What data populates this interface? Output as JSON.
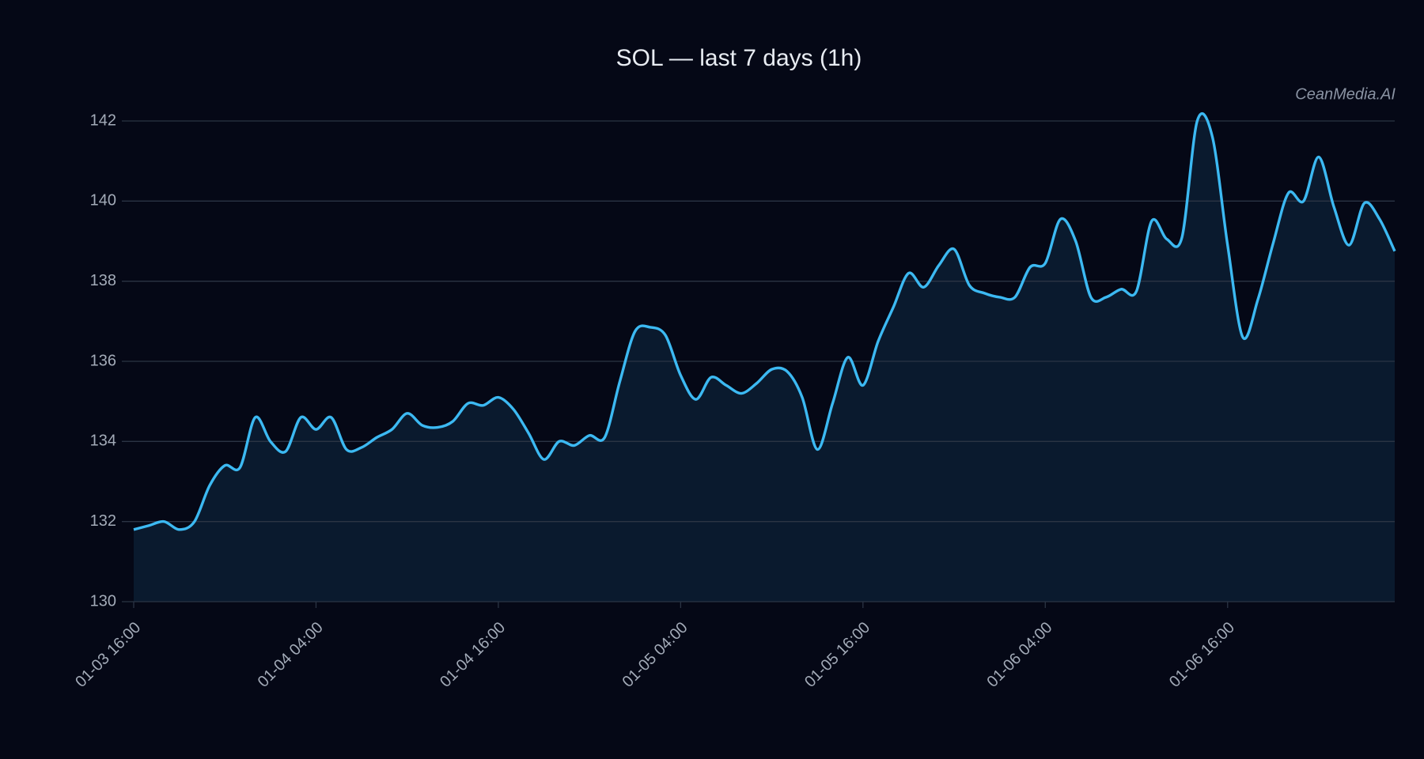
{
  "chart_data": {
    "type": "line",
    "title": "SOL — last 7 days (1h)",
    "watermark": "CeanMedia.AI",
    "x": [
      "01-03 16:00",
      "01-03 17:00",
      "01-03 18:00",
      "01-03 19:00",
      "01-03 20:00",
      "01-03 21:00",
      "01-03 22:00",
      "01-03 23:00",
      "01-04 00:00",
      "01-04 01:00",
      "01-04 02:00",
      "01-04 03:00",
      "01-04 04:00",
      "01-04 05:00",
      "01-04 06:00",
      "01-04 07:00",
      "01-04 08:00",
      "01-04 09:00",
      "01-04 10:00",
      "01-04 11:00",
      "01-04 12:00",
      "01-04 13:00",
      "01-04 14:00",
      "01-04 15:00",
      "01-04 16:00",
      "01-04 17:00",
      "01-04 18:00",
      "01-04 19:00",
      "01-04 20:00",
      "01-04 21:00",
      "01-04 22:00",
      "01-04 23:00",
      "01-05 00:00",
      "01-05 01:00",
      "01-05 02:00",
      "01-05 03:00",
      "01-05 04:00",
      "01-05 05:00",
      "01-05 06:00",
      "01-05 07:00",
      "01-05 08:00",
      "01-05 09:00",
      "01-05 10:00",
      "01-05 11:00",
      "01-05 12:00",
      "01-05 13:00",
      "01-05 14:00",
      "01-05 15:00",
      "01-05 16:00",
      "01-05 17:00",
      "01-05 18:00",
      "01-05 19:00",
      "01-05 20:00",
      "01-05 21:00",
      "01-05 22:00",
      "01-05 23:00",
      "01-06 00:00",
      "01-06 01:00",
      "01-06 02:00",
      "01-06 03:00",
      "01-06 04:00",
      "01-06 05:00",
      "01-06 06:00",
      "01-06 07:00",
      "01-06 08:00",
      "01-06 09:00",
      "01-06 10:00",
      "01-06 11:00",
      "01-06 12:00",
      "01-06 13:00",
      "01-06 14:00",
      "01-06 15:00",
      "01-06 16:00",
      "01-06 17:00",
      "01-06 18:00",
      "01-06 19:00",
      "01-06 20:00",
      "01-06 21:00",
      "01-06 22:00",
      "01-06 23:00",
      "01-07 00:00",
      "01-07 01:00",
      "01-07 02:00",
      "01-07 03:00"
    ],
    "series": [
      {
        "color": "#3cb9f2",
        "fill": "#0a1a2e",
        "values": [
          131.8,
          131.9,
          132.0,
          131.8,
          132.0,
          132.9,
          133.4,
          133.35,
          134.6,
          134.0,
          133.75,
          134.6,
          134.3,
          134.6,
          133.8,
          133.85,
          134.1,
          134.3,
          134.7,
          134.4,
          134.35,
          134.5,
          134.95,
          134.9,
          135.1,
          134.8,
          134.2,
          133.55,
          134.0,
          133.9,
          134.15,
          134.1,
          135.5,
          136.75,
          136.85,
          136.65,
          135.65,
          135.05,
          135.6,
          135.4,
          135.2,
          135.45,
          135.8,
          135.75,
          135.1,
          133.8,
          134.95,
          136.1,
          135.4,
          136.5,
          137.35,
          138.2,
          137.85,
          138.4,
          138.8,
          137.9,
          137.7,
          137.6,
          137.6,
          138.35,
          138.45,
          139.55,
          139.0,
          137.6,
          137.6,
          137.8,
          137.75,
          139.5,
          139.05,
          139.1,
          142.0,
          141.6,
          138.9,
          136.6,
          137.55,
          138.95,
          140.2,
          140.0,
          141.1,
          139.85,
          138.9,
          139.95,
          139.55,
          138.75
        ]
      }
    ],
    "xticks": [
      "01-03 16:00",
      "01-04 04:00",
      "01-04 16:00",
      "01-05 04:00",
      "01-05 16:00",
      "01-06 04:00",
      "01-06 16:00"
    ],
    "ylim": [
      130,
      142
    ],
    "yticks": [
      130,
      132,
      134,
      136,
      138,
      140,
      142
    ],
    "grid": true
  }
}
